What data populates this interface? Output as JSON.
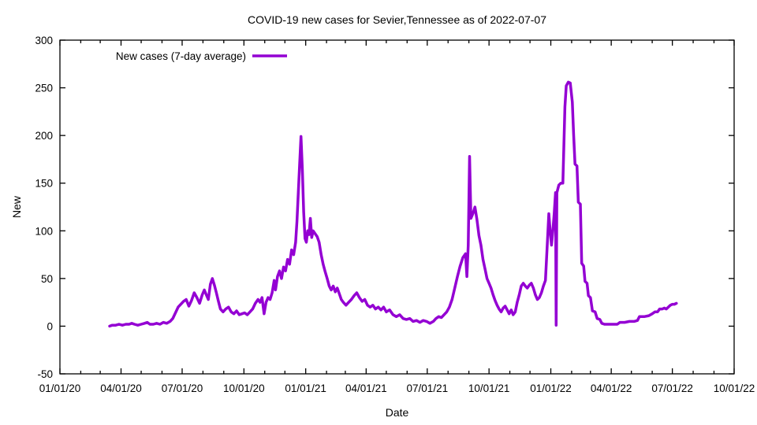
{
  "chart_data": {
    "type": "line",
    "title": "COVID-19 new cases for Sevier,Tennessee as of 2022-07-07",
    "xlabel": "Date",
    "ylabel": "New",
    "xlim": [
      "2020-01-01",
      "2022-10-01"
    ],
    "ylim": [
      -50,
      300
    ],
    "grid": false,
    "legend_position": "top-left-inside",
    "background_color": "#ffffff",
    "axis_color": "#000000",
    "x_ticks": [
      {
        "date": "2020-01-01",
        "label": "01/01/20"
      },
      {
        "date": "2020-04-01",
        "label": "04/01/20"
      },
      {
        "date": "2020-07-01",
        "label": "07/01/20"
      },
      {
        "date": "2020-10-01",
        "label": "10/01/20"
      },
      {
        "date": "2021-01-01",
        "label": "01/01/21"
      },
      {
        "date": "2021-04-01",
        "label": "04/01/21"
      },
      {
        "date": "2021-07-01",
        "label": "07/01/21"
      },
      {
        "date": "2021-10-01",
        "label": "10/01/21"
      },
      {
        "date": "2022-01-01",
        "label": "01/01/22"
      },
      {
        "date": "2022-04-01",
        "label": "04/01/22"
      },
      {
        "date": "2022-07-01",
        "label": "07/01/22"
      },
      {
        "date": "2022-10-01",
        "label": "10/01/22"
      }
    ],
    "x_minor_ticks": "monthly",
    "y_ticks": [
      {
        "value": -50,
        "label": "-50"
      },
      {
        "value": 0,
        "label": "0"
      },
      {
        "value": 50,
        "label": "50"
      },
      {
        "value": 100,
        "label": "100"
      },
      {
        "value": 150,
        "label": "150"
      },
      {
        "value": 200,
        "label": "200"
      },
      {
        "value": 250,
        "label": "250"
      },
      {
        "value": 300,
        "label": "300"
      }
    ],
    "series": [
      {
        "name": "New cases (7-day average)",
        "color": "#9400D3",
        "points": [
          [
            "2020-03-15",
            0
          ],
          [
            "2020-03-19",
            1
          ],
          [
            "2020-03-24",
            1
          ],
          [
            "2020-03-29",
            2
          ],
          [
            "2020-04-03",
            1
          ],
          [
            "2020-04-08",
            2
          ],
          [
            "2020-04-13",
            2
          ],
          [
            "2020-04-17",
            3
          ],
          [
            "2020-04-21",
            2
          ],
          [
            "2020-04-26",
            1
          ],
          [
            "2020-05-01",
            2
          ],
          [
            "2020-05-06",
            3
          ],
          [
            "2020-05-10",
            4
          ],
          [
            "2020-05-14",
            2
          ],
          [
            "2020-05-19",
            2
          ],
          [
            "2020-05-24",
            3
          ],
          [
            "2020-05-29",
            2
          ],
          [
            "2020-06-03",
            4
          ],
          [
            "2020-06-08",
            3
          ],
          [
            "2020-06-13",
            5
          ],
          [
            "2020-06-17",
            8
          ],
          [
            "2020-06-21",
            14
          ],
          [
            "2020-06-25",
            20
          ],
          [
            "2020-06-29",
            23
          ],
          [
            "2020-07-03",
            26
          ],
          [
            "2020-07-07",
            28
          ],
          [
            "2020-07-11",
            21
          ],
          [
            "2020-07-15",
            27
          ],
          [
            "2020-07-19",
            35
          ],
          [
            "2020-07-23",
            30
          ],
          [
            "2020-07-27",
            24
          ],
          [
            "2020-07-31",
            33
          ],
          [
            "2020-08-03",
            38
          ],
          [
            "2020-08-06",
            33
          ],
          [
            "2020-08-09",
            28
          ],
          [
            "2020-08-12",
            44
          ],
          [
            "2020-08-15",
            50
          ],
          [
            "2020-08-18",
            43
          ],
          [
            "2020-08-21",
            35
          ],
          [
            "2020-08-24",
            26
          ],
          [
            "2020-08-27",
            18
          ],
          [
            "2020-08-31",
            15
          ],
          [
            "2020-09-04",
            18
          ],
          [
            "2020-09-08",
            20
          ],
          [
            "2020-09-12",
            15
          ],
          [
            "2020-09-16",
            13
          ],
          [
            "2020-09-20",
            16
          ],
          [
            "2020-09-24",
            12
          ],
          [
            "2020-09-28",
            13
          ],
          [
            "2020-10-02",
            14
          ],
          [
            "2020-10-06",
            12
          ],
          [
            "2020-10-10",
            15
          ],
          [
            "2020-10-14",
            18
          ],
          [
            "2020-10-18",
            24
          ],
          [
            "2020-10-22",
            28
          ],
          [
            "2020-10-25",
            25
          ],
          [
            "2020-10-28",
            30
          ],
          [
            "2020-10-31",
            13
          ],
          [
            "2020-11-03",
            25
          ],
          [
            "2020-11-06",
            30
          ],
          [
            "2020-11-09",
            28
          ],
          [
            "2020-11-12",
            35
          ],
          [
            "2020-11-15",
            48
          ],
          [
            "2020-11-17",
            38
          ],
          [
            "2020-11-20",
            52
          ],
          [
            "2020-11-23",
            58
          ],
          [
            "2020-11-26",
            50
          ],
          [
            "2020-11-29",
            62
          ],
          [
            "2020-12-02",
            58
          ],
          [
            "2020-12-05",
            70
          ],
          [
            "2020-12-08",
            65
          ],
          [
            "2020-12-11",
            80
          ],
          [
            "2020-12-14",
            75
          ],
          [
            "2020-12-17",
            88
          ],
          [
            "2020-12-19",
            110
          ],
          [
            "2020-12-21",
            140
          ],
          [
            "2020-12-23",
            170
          ],
          [
            "2020-12-25",
            199
          ],
          [
            "2020-12-27",
            165
          ],
          [
            "2020-12-29",
            120
          ],
          [
            "2020-12-31",
            92
          ],
          [
            "2021-01-02",
            88
          ],
          [
            "2021-01-04",
            100
          ],
          [
            "2021-01-06",
            96
          ],
          [
            "2021-01-08",
            113
          ],
          [
            "2021-01-10",
            93
          ],
          [
            "2021-01-12",
            100
          ],
          [
            "2021-01-15",
            97
          ],
          [
            "2021-01-18",
            94
          ],
          [
            "2021-01-21",
            88
          ],
          [
            "2021-01-24",
            75
          ],
          [
            "2021-01-27",
            65
          ],
          [
            "2021-01-30",
            57
          ],
          [
            "2021-02-02",
            50
          ],
          [
            "2021-02-05",
            42
          ],
          [
            "2021-02-08",
            38
          ],
          [
            "2021-02-11",
            42
          ],
          [
            "2021-02-14",
            36
          ],
          [
            "2021-02-17",
            40
          ],
          [
            "2021-02-20",
            34
          ],
          [
            "2021-02-23",
            28
          ],
          [
            "2021-02-26",
            25
          ],
          [
            "2021-03-02",
            22
          ],
          [
            "2021-03-06",
            25
          ],
          [
            "2021-03-10",
            28
          ],
          [
            "2021-03-14",
            32
          ],
          [
            "2021-03-18",
            35
          ],
          [
            "2021-03-22",
            30
          ],
          [
            "2021-03-26",
            26
          ],
          [
            "2021-03-30",
            28
          ],
          [
            "2021-04-03",
            22
          ],
          [
            "2021-04-07",
            20
          ],
          [
            "2021-04-11",
            22
          ],
          [
            "2021-04-15",
            18
          ],
          [
            "2021-04-19",
            20
          ],
          [
            "2021-04-23",
            17
          ],
          [
            "2021-04-27",
            20
          ],
          [
            "2021-05-01",
            15
          ],
          [
            "2021-05-06",
            17
          ],
          [
            "2021-05-11",
            12
          ],
          [
            "2021-05-16",
            10
          ],
          [
            "2021-05-21",
            12
          ],
          [
            "2021-05-26",
            8
          ],
          [
            "2021-05-31",
            7
          ],
          [
            "2021-06-05",
            8
          ],
          [
            "2021-06-10",
            5
          ],
          [
            "2021-06-15",
            6
          ],
          [
            "2021-06-20",
            4
          ],
          [
            "2021-06-25",
            6
          ],
          [
            "2021-06-30",
            5
          ],
          [
            "2021-07-05",
            3
          ],
          [
            "2021-07-10",
            5
          ],
          [
            "2021-07-14",
            8
          ],
          [
            "2021-07-18",
            10
          ],
          [
            "2021-07-22",
            9
          ],
          [
            "2021-07-26",
            12
          ],
          [
            "2021-07-30",
            15
          ],
          [
            "2021-08-03",
            20
          ],
          [
            "2021-08-07",
            28
          ],
          [
            "2021-08-11",
            40
          ],
          [
            "2021-08-15",
            52
          ],
          [
            "2021-08-19",
            63
          ],
          [
            "2021-08-23",
            72
          ],
          [
            "2021-08-27",
            76
          ],
          [
            "2021-08-29",
            52
          ],
          [
            "2021-08-31",
            85
          ],
          [
            "2021-09-02",
            178
          ],
          [
            "2021-09-04",
            113
          ],
          [
            "2021-09-07",
            118
          ],
          [
            "2021-09-10",
            125
          ],
          [
            "2021-09-13",
            112
          ],
          [
            "2021-09-16",
            95
          ],
          [
            "2021-09-19",
            85
          ],
          [
            "2021-09-22",
            70
          ],
          [
            "2021-09-25",
            60
          ],
          [
            "2021-09-28",
            50
          ],
          [
            "2021-10-01",
            45
          ],
          [
            "2021-10-04",
            40
          ],
          [
            "2021-10-07",
            33
          ],
          [
            "2021-10-10",
            27
          ],
          [
            "2021-10-13",
            22
          ],
          [
            "2021-10-16",
            18
          ],
          [
            "2021-10-19",
            15
          ],
          [
            "2021-10-22",
            19
          ],
          [
            "2021-10-25",
            21
          ],
          [
            "2021-10-28",
            17
          ],
          [
            "2021-10-31",
            13
          ],
          [
            "2021-11-03",
            17
          ],
          [
            "2021-11-06",
            12
          ],
          [
            "2021-11-09",
            15
          ],
          [
            "2021-11-12",
            25
          ],
          [
            "2021-11-15",
            33
          ],
          [
            "2021-11-18",
            42
          ],
          [
            "2021-11-21",
            45
          ],
          [
            "2021-11-24",
            42
          ],
          [
            "2021-11-27",
            40
          ],
          [
            "2021-11-30",
            43
          ],
          [
            "2021-12-03",
            45
          ],
          [
            "2021-12-06",
            40
          ],
          [
            "2021-12-09",
            33
          ],
          [
            "2021-12-12",
            28
          ],
          [
            "2021-12-15",
            30
          ],
          [
            "2021-12-18",
            35
          ],
          [
            "2021-12-21",
            42
          ],
          [
            "2021-12-24",
            48
          ],
          [
            "2021-12-27",
            90
          ],
          [
            "2021-12-29",
            118
          ],
          [
            "2021-12-31",
            100
          ],
          [
            "2022-01-02",
            85
          ],
          [
            "2022-01-04",
            100
          ],
          [
            "2022-01-06",
            118
          ],
          [
            "2022-01-08",
            140
          ],
          [
            "2022-01-09",
            1
          ],
          [
            "2022-01-10",
            140
          ],
          [
            "2022-01-13",
            148
          ],
          [
            "2022-01-16",
            150
          ],
          [
            "2022-01-19",
            150
          ],
          [
            "2022-01-22",
            230
          ],
          [
            "2022-01-24",
            252
          ],
          [
            "2022-01-27",
            256
          ],
          [
            "2022-01-30",
            255
          ],
          [
            "2022-02-02",
            235
          ],
          [
            "2022-02-04",
            200
          ],
          [
            "2022-02-06",
            170
          ],
          [
            "2022-02-09",
            168
          ],
          [
            "2022-02-11",
            130
          ],
          [
            "2022-02-14",
            128
          ],
          [
            "2022-02-16",
            66
          ],
          [
            "2022-02-19",
            63
          ],
          [
            "2022-02-21",
            47
          ],
          [
            "2022-02-24",
            45
          ],
          [
            "2022-02-26",
            32
          ],
          [
            "2022-03-01",
            30
          ],
          [
            "2022-03-04",
            16
          ],
          [
            "2022-03-08",
            15
          ],
          [
            "2022-03-11",
            8
          ],
          [
            "2022-03-15",
            7
          ],
          [
            "2022-03-18",
            3
          ],
          [
            "2022-03-22",
            2
          ],
          [
            "2022-03-27",
            2
          ],
          [
            "2022-04-03",
            2
          ],
          [
            "2022-04-10",
            2
          ],
          [
            "2022-04-14",
            4
          ],
          [
            "2022-04-21",
            4
          ],
          [
            "2022-04-28",
            5
          ],
          [
            "2022-05-05",
            5
          ],
          [
            "2022-05-10",
            6
          ],
          [
            "2022-05-13",
            10
          ],
          [
            "2022-05-20",
            10
          ],
          [
            "2022-05-27",
            11
          ],
          [
            "2022-06-01",
            13
          ],
          [
            "2022-06-05",
            15
          ],
          [
            "2022-06-09",
            15
          ],
          [
            "2022-06-12",
            18
          ],
          [
            "2022-06-16",
            18
          ],
          [
            "2022-06-19",
            19
          ],
          [
            "2022-06-22",
            18
          ],
          [
            "2022-06-25",
            20
          ],
          [
            "2022-06-28",
            22
          ],
          [
            "2022-07-01",
            23
          ],
          [
            "2022-07-04",
            23
          ],
          [
            "2022-07-07",
            24
          ]
        ]
      }
    ]
  }
}
